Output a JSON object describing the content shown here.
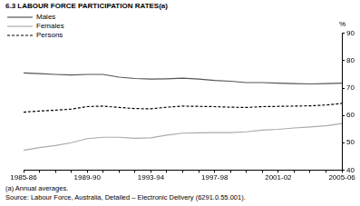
{
  "chart_data": {
    "type": "line",
    "title": "6.3  LABOUR FORCE PARTICIPATION RATES(a)",
    "y_label": "%",
    "categories": [
      "1985-86",
      null,
      null,
      null,
      "1989-90",
      null,
      null,
      null,
      "1993-94",
      null,
      null,
      null,
      "1997-98",
      null,
      null,
      null,
      "2001-02",
      null,
      null,
      null,
      "2005-06"
    ],
    "series": [
      {
        "name": "Males",
        "color": "#555555",
        "line_style": "solid",
        "values": [
          75.5,
          75.3,
          75.0,
          74.8,
          75.0,
          75.0,
          74.0,
          73.5,
          73.3,
          73.4,
          73.6,
          73.3,
          72.8,
          72.5,
          72.0,
          72.0,
          71.8,
          71.6,
          71.5,
          71.6,
          71.8
        ]
      },
      {
        "name": "Females",
        "color": "#aaaaaa",
        "line_style": "solid",
        "values": [
          47.2,
          48.2,
          49.0,
          50.0,
          51.5,
          52.0,
          52.0,
          51.6,
          51.8,
          52.8,
          53.5,
          53.6,
          53.7,
          53.7,
          54.0,
          54.6,
          54.9,
          55.4,
          55.8,
          56.2,
          57.0
        ]
      },
      {
        "name": "Persons",
        "color": "#000000",
        "line_style": "dashed",
        "values": [
          61.2,
          61.6,
          61.9,
          62.3,
          63.2,
          63.4,
          62.9,
          62.5,
          62.4,
          63.0,
          63.4,
          63.3,
          63.2,
          63.0,
          62.9,
          63.2,
          63.3,
          63.4,
          63.5,
          63.8,
          64.4
        ]
      }
    ],
    "ylim": [
      40,
      90
    ],
    "yticks": [
      40,
      50,
      60,
      70,
      80,
      90
    ],
    "grid": false,
    "legend": "upper left",
    "notes": [
      "(a) Annual averages.",
      "Source: Labour Force, Australia, Detailed – Electronic Delivery (6291.0.55.001)."
    ]
  }
}
